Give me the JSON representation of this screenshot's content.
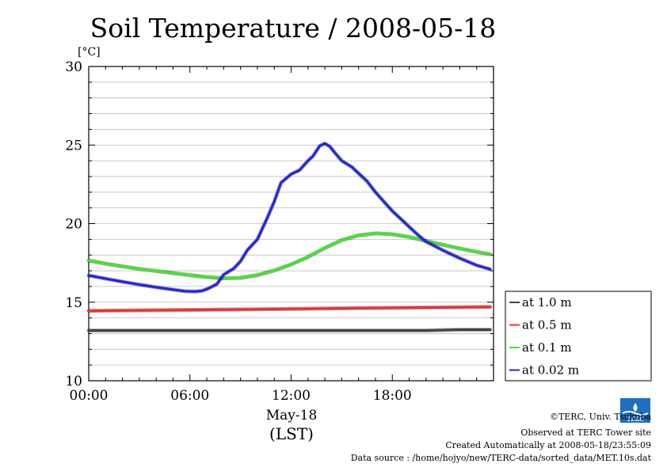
{
  "chart_data": {
    "type": "line",
    "title": "Soil Temperature / 2008-05-18",
    "ylabel": "[°C]",
    "ylim": [
      10,
      30
    ],
    "yticks": [
      "10",
      "15",
      "20",
      "25",
      "30"
    ],
    "xlim": [
      0,
      24
    ],
    "xticks": [
      {
        "hour": 0,
        "label": "00:00"
      },
      {
        "hour": 6,
        "label": "06:00"
      },
      {
        "hour": 12,
        "label": "12:00"
      },
      {
        "hour": 18,
        "label": "18:00"
      }
    ],
    "xdate": "May-18",
    "xunit": "(LST)",
    "grid": true,
    "legend_position": "right",
    "series": [
      {
        "name": "at 1.0 m",
        "color": "#444444",
        "x": [
          0,
          2,
          4,
          6,
          8,
          10,
          12,
          14,
          16,
          18,
          20,
          22,
          23.8
        ],
        "values": [
          13.2,
          13.2,
          13.2,
          13.2,
          13.2,
          13.2,
          13.2,
          13.2,
          13.2,
          13.2,
          13.2,
          13.25,
          13.25
        ]
      },
      {
        "name": "at 0.5 m",
        "color": "#ff2a2a",
        "x": [
          0,
          2,
          4,
          6,
          8,
          10,
          12,
          14,
          16,
          18,
          20,
          22,
          23.8
        ],
        "values": [
          14.45,
          14.47,
          14.49,
          14.51,
          14.53,
          14.55,
          14.57,
          14.6,
          14.62,
          14.64,
          14.66,
          14.68,
          14.7
        ]
      },
      {
        "name": "at 0.1 m",
        "color": "#33ee22",
        "x": [
          0,
          1,
          2,
          3,
          4,
          5,
          6,
          7,
          8,
          9,
          10,
          11,
          12,
          13,
          14,
          15,
          16,
          17,
          18,
          19,
          20,
          21,
          22,
          23,
          23.8
        ],
        "values": [
          17.65,
          17.45,
          17.28,
          17.12,
          16.98,
          16.85,
          16.72,
          16.6,
          16.52,
          16.55,
          16.72,
          17.02,
          17.4,
          17.88,
          18.45,
          18.95,
          19.25,
          19.38,
          19.32,
          19.15,
          18.9,
          18.65,
          18.42,
          18.2,
          18.05
        ]
      },
      {
        "name": "at 0.02 m",
        "color": "#2222ee",
        "x": [
          0,
          1,
          2,
          3,
          4,
          5,
          5.7,
          6.3,
          6.7,
          7.1,
          7.6,
          8,
          8.6,
          9,
          9.4,
          10,
          10.6,
          11,
          11.4,
          12,
          12.5,
          13,
          13.3,
          13.7,
          14,
          14.3,
          14.6,
          15,
          15.6,
          16,
          16.5,
          17,
          17.5,
          18,
          18.5,
          19,
          19.5,
          20,
          21,
          22,
          23,
          23.8
        ],
        "values": [
          16.7,
          16.5,
          16.3,
          16.12,
          15.95,
          15.8,
          15.7,
          15.68,
          15.72,
          15.88,
          16.15,
          16.75,
          17.15,
          17.6,
          18.3,
          19.0,
          20.4,
          21.4,
          22.6,
          23.15,
          23.4,
          24.0,
          24.3,
          24.95,
          25.1,
          24.9,
          24.5,
          24.0,
          23.6,
          23.2,
          22.7,
          22.0,
          21.4,
          20.8,
          20.3,
          19.8,
          19.3,
          18.85,
          18.3,
          17.8,
          17.35,
          17.1
        ]
      }
    ]
  },
  "footer": {
    "logo_text": "TERC",
    "copyright": "©TERC, Univ. Tsukuba",
    "observed": "Observed at TERC Tower site",
    "created": "Created Automatically at 2008-05-18/23:55:09",
    "source": "Data source : /home/hojyo/new/TERC-data/sorted_data/MET.10s.dat"
  }
}
